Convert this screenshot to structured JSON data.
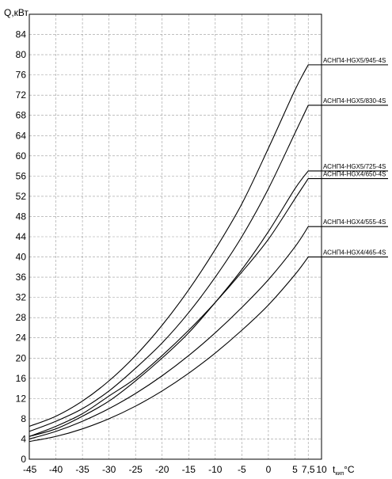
{
  "chart_data": {
    "type": "line",
    "ylabel": "Q,кВт",
    "xlabel_main": "t",
    "xlabel_sub": "кип",
    "xlabel_unit": "°C",
    "xlim": [
      -45,
      10
    ],
    "ylim": [
      0,
      88
    ],
    "x_ticks": [
      -45,
      -40,
      -35,
      -30,
      -25,
      -20,
      -15,
      -10,
      -5,
      0,
      5,
      7.5,
      10
    ],
    "x_tick_labels": [
      "-45",
      "-40",
      "-35",
      "-30",
      "-25",
      "-20",
      "-15",
      "-10",
      "-5",
      "0",
      "5",
      "7,5",
      "10"
    ],
    "y_ticks": [
      0,
      4,
      8,
      12,
      16,
      20,
      24,
      28,
      32,
      36,
      40,
      44,
      48,
      52,
      56,
      60,
      64,
      68,
      72,
      76,
      80,
      84
    ],
    "grid": true,
    "series": [
      {
        "name": "АСНП4-HGX5/945-4S",
        "x": [
          -45,
          -40,
          -35,
          -30,
          -25,
          -20,
          -15,
          -10,
          -5,
          0,
          5,
          7.5
        ],
        "y": [
          6.5,
          8.5,
          11.5,
          15.5,
          20.5,
          26.5,
          33.5,
          41.5,
          50.5,
          61.5,
          73,
          78
        ]
      },
      {
        "name": "АСНП4-HGX5/830-4S",
        "x": [
          -45,
          -40,
          -35,
          -30,
          -25,
          -20,
          -15,
          -10,
          -5,
          0,
          5,
          7.5
        ],
        "y": [
          5.5,
          7.5,
          10,
          13.5,
          18,
          23,
          29,
          36,
          44,
          53.5,
          64.5,
          70
        ]
      },
      {
        "name": "АСНП4-HGX5/725-4S",
        "x": [
          -45,
          -40,
          -35,
          -30,
          -25,
          -20,
          -15,
          -10,
          -5,
          0,
          5,
          7.5
        ],
        "y": [
          4.5,
          6,
          8.5,
          11.5,
          15.5,
          20,
          25,
          31,
          37.5,
          45,
          53.5,
          57
        ]
      },
      {
        "name": "АСНП4-HGX4/650-4S",
        "x": [
          -45,
          -40,
          -35,
          -30,
          -25,
          -20,
          -15,
          -10,
          -5,
          0,
          5,
          7.5
        ],
        "y": [
          4.5,
          6.5,
          9,
          12.5,
          16,
          20.5,
          25.5,
          31,
          37,
          43.5,
          51.5,
          55.5
        ]
      },
      {
        "name": "АСНП4-HGX4/555-4S",
        "x": [
          -45,
          -40,
          -35,
          -30,
          -25,
          -20,
          -15,
          -10,
          -5,
          0,
          5,
          7.5
        ],
        "y": [
          4,
          5.5,
          7.5,
          10,
          13,
          16.5,
          20.5,
          25,
          30,
          35.5,
          42,
          46
        ]
      },
      {
        "name": "АСНП4-HGX4/465-4S",
        "x": [
          -45,
          -40,
          -35,
          -30,
          -25,
          -20,
          -15,
          -10,
          -5,
          0,
          5,
          7.5
        ],
        "y": [
          3.5,
          4.5,
          6,
          8,
          10.5,
          13.5,
          17,
          21,
          25.5,
          30.5,
          36.5,
          40
        ]
      }
    ]
  }
}
